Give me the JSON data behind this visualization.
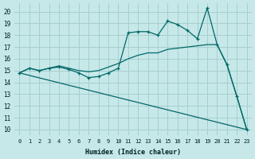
{
  "xlabel": "Humidex (Indice chaleur)",
  "bg_color": "#c6e8e8",
  "grid_color": "#a8cece",
  "line_color": "#006868",
  "xlim": [
    -0.5,
    23.5
  ],
  "ylim": [
    9.5,
    20.7
  ],
  "xticks": [
    0,
    1,
    2,
    3,
    4,
    5,
    6,
    7,
    8,
    9,
    10,
    11,
    12,
    13,
    14,
    15,
    16,
    17,
    18,
    19,
    20,
    21,
    22,
    23
  ],
  "yticks": [
    10,
    11,
    12,
    13,
    14,
    15,
    16,
    17,
    18,
    19,
    20
  ],
  "series1_x": [
    0,
    1,
    2,
    3,
    4,
    5,
    6,
    7,
    8,
    9,
    10,
    11,
    12,
    13,
    14,
    15,
    16,
    17,
    18,
    19,
    20,
    21,
    22,
    23
  ],
  "series1_y": [
    14.8,
    15.2,
    15.0,
    15.2,
    15.3,
    15.1,
    14.8,
    14.4,
    14.5,
    14.8,
    15.2,
    18.2,
    18.3,
    18.3,
    18.0,
    19.2,
    18.9,
    18.4,
    17.7,
    20.3,
    17.2,
    15.5,
    12.8,
    10.0
  ],
  "series2_x": [
    0,
    1,
    2,
    3,
    4,
    5,
    6,
    7,
    8,
    9,
    10,
    11,
    12,
    13,
    14,
    15,
    16,
    17,
    18,
    19,
    20,
    21,
    22,
    23
  ],
  "series2_y": [
    14.8,
    15.2,
    15.0,
    15.2,
    15.4,
    15.2,
    15.0,
    14.9,
    15.0,
    15.3,
    15.6,
    16.0,
    16.3,
    16.5,
    16.5,
    16.8,
    16.9,
    17.0,
    17.1,
    17.2,
    17.2,
    15.5,
    12.8,
    10.0
  ],
  "series3_x": [
    0,
    23
  ],
  "series3_y": [
    14.8,
    10.0
  ]
}
